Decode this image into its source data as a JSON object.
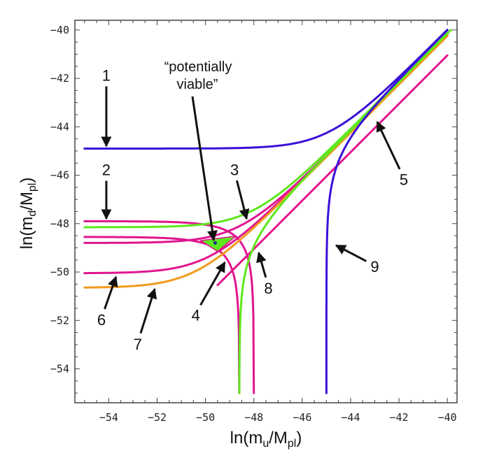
{
  "chart_data": {
    "type": "line",
    "title": "",
    "xlabel": "ln(m_u/M_pl)",
    "xlabel_main": "ln(m",
    "xlabel_sub": "u",
    "xlabel_mid": "/M",
    "xlabel_sub2": "pl",
    "xlabel_end": ")",
    "ylabel": "ln(m_d/M_pl)",
    "ylabel_main": "ln(m",
    "ylabel_sub": "d",
    "ylabel_mid": "/M",
    "ylabel_sub2": "pl",
    "ylabel_end": ")",
    "xlim": [
      -55.4,
      -39.6
    ],
    "ylim": [
      -55.4,
      -39.6
    ],
    "xticks": [
      -54,
      -52,
      -50,
      -48,
      -46,
      -44,
      -42,
      -40
    ],
    "yticks": [
      -40,
      -42,
      -44,
      -46,
      -48,
      -50,
      -52,
      -54
    ],
    "xtick_labels": [
      "−54",
      "−52",
      "−50",
      "−48",
      "−46",
      "−44",
      "−42",
      "−40"
    ],
    "ytick_labels": [
      "−40",
      "−42",
      "−44",
      "−46",
      "−48",
      "−50",
      "−52",
      "−54"
    ],
    "grid": false,
    "legend": "none",
    "colors": {
      "blue": "#3a10d8",
      "magenta": "#e0158f",
      "green": "#5de81c",
      "orange": "#f29a1c",
      "region": "#5de81c",
      "point": "#1a2a90"
    },
    "series": [
      {
        "name": "curve-1",
        "color": "blue",
        "form": "sum",
        "horizontal_asymptote": -44.9,
        "diagonal_offset": 0.0,
        "x_range": [
          -55,
          -40
        ]
      },
      {
        "name": "curve-2",
        "color": "magenta",
        "form": "drop",
        "horizontal_asymptote": -47.9,
        "vertical_asymptote": -48.0,
        "x_range": [
          -55,
          -48.0
        ]
      },
      {
        "name": "curve-3",
        "color": "green",
        "form": "sum",
        "horizontal_asymptote": -48.15,
        "diagonal_offset": -0.1,
        "x_range": [
          -55,
          -40
        ]
      },
      {
        "name": "curve-4",
        "color": "magenta",
        "form": "drop",
        "horizontal_asymptote": -48.55,
        "vertical_asymptote": -48.6,
        "x_range": [
          -55,
          -48.6
        ]
      },
      {
        "name": "curve-4b",
        "color": "magenta",
        "form": "sum",
        "horizontal_asymptote": -48.8,
        "diagonal_offset": -0.2,
        "x_range": [
          -55,
          -40
        ]
      },
      {
        "name": "curve-5",
        "color": "magenta",
        "form": "sum",
        "horizontal_asymptote": -55.0,
        "diagonal_offset": -1.05,
        "x_range": [
          -49.5,
          -40
        ]
      },
      {
        "name": "curve-6",
        "color": "magenta",
        "form": "sum",
        "horizontal_asymptote": -50.05,
        "diagonal_offset": -0.2,
        "x_range": [
          -55,
          -40
        ]
      },
      {
        "name": "curve-7",
        "color": "orange",
        "form": "sum",
        "horizontal_asymptote": -50.65,
        "diagonal_offset": -0.25,
        "x_range": [
          -55,
          -40
        ]
      },
      {
        "name": "curve-8",
        "color": "green",
        "form": "vsum",
        "vertical_asymptote": -48.6,
        "diagonal_offset": -0.15,
        "y_range": [
          -55,
          -40
        ]
      },
      {
        "name": "curve-9",
        "color": "blue",
        "form": "vsum",
        "vertical_asymptote": -45.0,
        "diagonal_offset": 0.0,
        "y_range": [
          -55,
          -40
        ]
      }
    ],
    "viable_region": {
      "label": "potentially viable",
      "center": [
        -49.6,
        -48.8
      ]
    },
    "annotations": [
      {
        "label": "1",
        "text_at": [
          -54.1,
          -42.1
        ],
        "arrow_to": [
          -54.1,
          -44.8
        ]
      },
      {
        "label": "2",
        "text_at": [
          -54.1,
          -46.0
        ],
        "arrow_to": [
          -54.1,
          -47.8
        ]
      },
      {
        "label": "3",
        "text_at": [
          -48.8,
          -46.0
        ],
        "arrow_to": [
          -48.3,
          -47.8
        ]
      },
      {
        "label": "4",
        "text_at": [
          -50.4,
          -52.0
        ],
        "arrow_to": [
          -49.2,
          -49.6
        ]
      },
      {
        "label": "5",
        "text_at": [
          -41.8,
          -46.4
        ],
        "arrow_to": [
          -42.9,
          -43.8
        ]
      },
      {
        "label": "6",
        "text_at": [
          -54.3,
          -52.2
        ],
        "arrow_to": [
          -53.7,
          -50.2
        ]
      },
      {
        "label": "7",
        "text_at": [
          -52.8,
          -53.2
        ],
        "arrow_to": [
          -52.1,
          -50.7
        ]
      },
      {
        "label": "8",
        "text_at": [
          -47.4,
          -50.9
        ],
        "arrow_to": [
          -47.8,
          -49.2
        ]
      },
      {
        "label": "9",
        "text_at": [
          -43.0,
          -50.0
        ],
        "arrow_to": [
          -44.6,
          -48.9
        ]
      }
    ],
    "viable_label_line1": "“potentially",
    "viable_label_line2": "viable”"
  }
}
